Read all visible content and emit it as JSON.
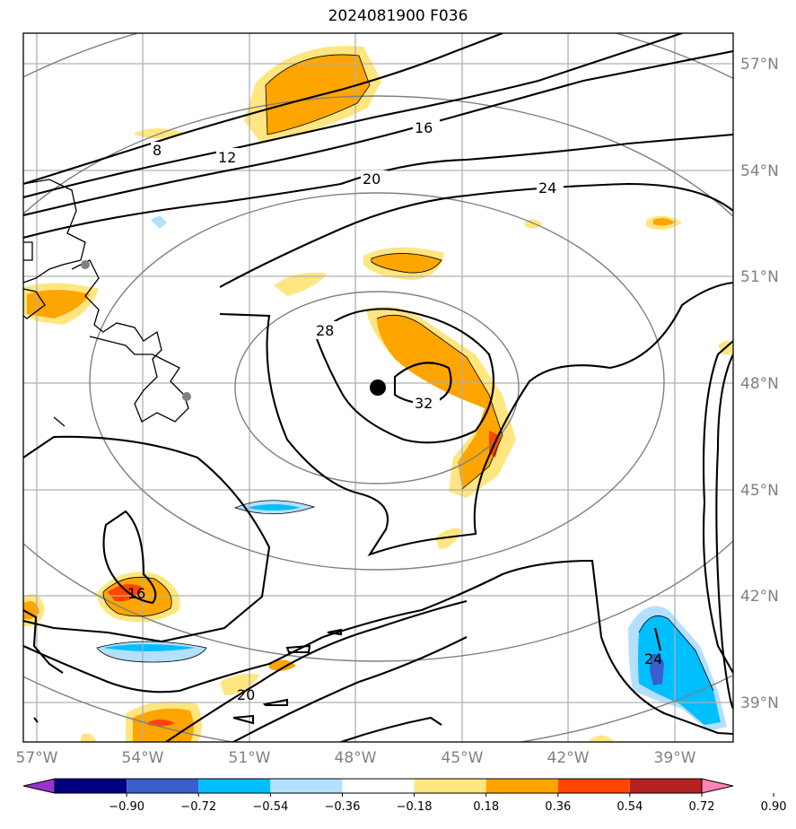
{
  "title": "2024081900 F036",
  "map": {
    "lon_ticks": [
      "57°W",
      "54°W",
      "51°W",
      "48°W",
      "45°W",
      "42°W",
      "39°W"
    ],
    "lat_ticks": [
      "57°N",
      "54°N",
      "51°N",
      "48°N",
      "45°N",
      "42°N",
      "39°N"
    ],
    "contour_labels": [
      "8",
      "12",
      "16",
      "20",
      "24",
      "28",
      "32",
      "16",
      "24",
      "20"
    ],
    "center_marker": "black-dot",
    "gray_circles": 4
  },
  "colorbar": {
    "ticks": [
      "−0.90",
      "−0.72",
      "−0.54",
      "−0.36",
      "−0.18",
      "0.18",
      "0.36",
      "0.54",
      "0.72",
      "0.90"
    ],
    "colors": [
      "#9933cc",
      "#000080",
      "#3a5fcd",
      "#00bfff",
      "#b3e0ff",
      "#ffffff",
      "#ffe680",
      "#ffa500",
      "#ff4500",
      "#b22222",
      "#ff85b3"
    ]
  }
}
